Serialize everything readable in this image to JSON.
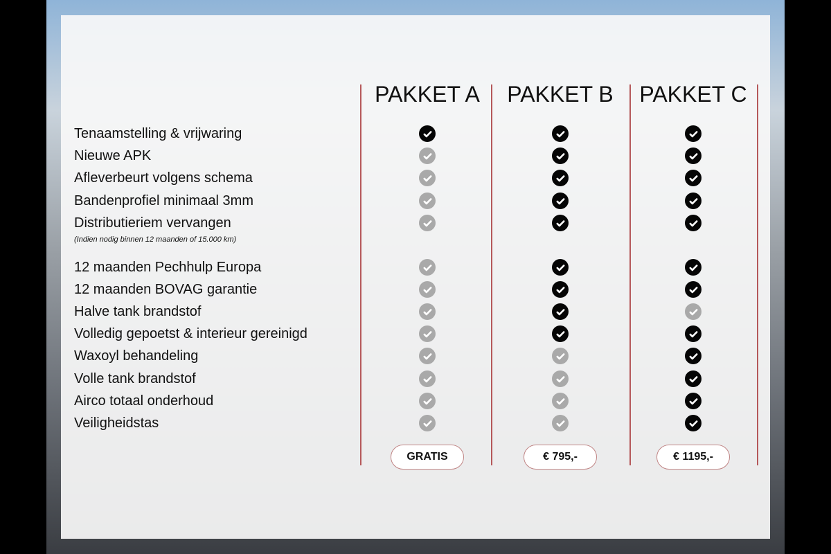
{
  "packages": [
    {
      "name": "PAKKET A",
      "price": "GRATIS"
    },
    {
      "name": "PAKKET B",
      "price": "€ 795,-"
    },
    {
      "name": "PAKKET C",
      "price": "€ 1195,-"
    }
  ],
  "note": "(Indien nodig binnen 12 maanden of 15.000 km)",
  "features": [
    {
      "label": "Tenaamstelling & vrijwaring",
      "included": [
        true,
        true,
        true
      ]
    },
    {
      "label": "Nieuwe APK",
      "included": [
        false,
        true,
        true
      ]
    },
    {
      "label": "Afleverbeurt volgens schema",
      "included": [
        false,
        true,
        true
      ]
    },
    {
      "label": "Bandenprofiel minimaal 3mm",
      "included": [
        false,
        true,
        true
      ]
    },
    {
      "label": "Distributieriem vervangen",
      "included": [
        false,
        true,
        true
      ]
    },
    {
      "label": "12 maanden Pechhulp Europa",
      "included": [
        false,
        true,
        true
      ]
    },
    {
      "label": "12 maanden BOVAG garantie",
      "included": [
        false,
        true,
        true
      ]
    },
    {
      "label": "Halve tank brandstof",
      "included": [
        false,
        true,
        false
      ]
    },
    {
      "label": "Volledig gepoetst & interieur gereinigd",
      "included": [
        false,
        true,
        true
      ]
    },
    {
      "label": "Waxoyl behandeling",
      "included": [
        false,
        false,
        true
      ]
    },
    {
      "label": "Volle tank brandstof",
      "included": [
        false,
        false,
        true
      ]
    },
    {
      "label": "Airco totaal onderhoud",
      "included": [
        false,
        false,
        true
      ]
    },
    {
      "label": "Veiligheidstas",
      "included": [
        false,
        false,
        true
      ]
    }
  ],
  "colors": {
    "divider": "#b5585a",
    "included": "#050505",
    "excluded": "#a9a9a9"
  }
}
